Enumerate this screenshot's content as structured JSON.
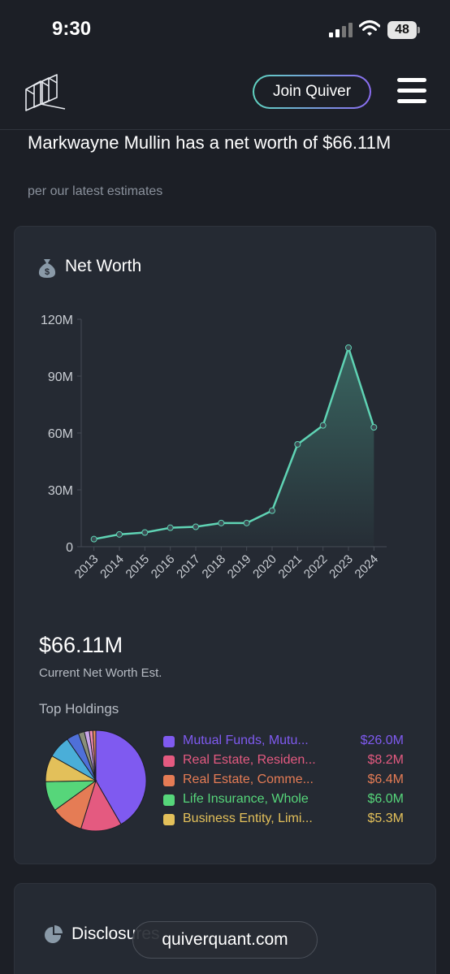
{
  "status_bar": {
    "time": "9:30",
    "battery": "48"
  },
  "header": {
    "join_label": "Join Quiver"
  },
  "headline": {
    "text": "Markwayne Mullin has a net worth of $66.11M",
    "subtext": "per our latest estimates"
  },
  "net_worth_card": {
    "title": "Net Worth",
    "current_value": "$66.11M",
    "current_label": "Current Net Worth Est.",
    "holdings_title": "Top Holdings"
  },
  "chart_data": [
    {
      "type": "area",
      "title": "Net Worth",
      "xlabel": "",
      "ylabel": "",
      "categories": [
        "2013",
        "2014",
        "2015",
        "2016",
        "2017",
        "2018",
        "2019",
        "2020",
        "2021",
        "2022",
        "2023",
        "2024"
      ],
      "values": [
        4,
        6.5,
        7.5,
        10,
        10.5,
        12.5,
        12.5,
        19,
        54,
        64,
        105,
        63
      ],
      "ylim": [
        0,
        120
      ],
      "yticks": [
        "0",
        "30M",
        "60M",
        "90M",
        "120M"
      ],
      "colors": {
        "line": "#5fd3b4",
        "marker": "#3d4a52"
      },
      "grid": false,
      "legend": "none"
    },
    {
      "type": "pie",
      "title": "Top Holdings",
      "series": [
        {
          "name": "Mutual Funds, Mutu...",
          "label": "$26.0M",
          "value": 26.0,
          "color": "#7f5af0"
        },
        {
          "name": "Real Estate, Residen...",
          "label": "$8.2M",
          "value": 8.2,
          "color": "#e45a80"
        },
        {
          "name": "Real Estate, Comme...",
          "label": "$6.4M",
          "value": 6.4,
          "color": "#e57c55"
        },
        {
          "name": "Life Insurance, Whole",
          "label": "$6.0M",
          "value": 6.0,
          "color": "#56d67a"
        },
        {
          "name": "Business Entity, Limi...",
          "label": "$5.3M",
          "value": 5.3,
          "color": "#e3c05a"
        },
        {
          "name": "",
          "value": 4.5,
          "color": "#4aaed8"
        },
        {
          "name": "",
          "value": 2.5,
          "color": "#4f70d8"
        },
        {
          "name": "",
          "value": 1.2,
          "color": "#8a8f7a"
        },
        {
          "name": "",
          "value": 1.0,
          "color": "#c9a5e8"
        },
        {
          "name": "",
          "value": 0.7,
          "color": "#f08ab0"
        },
        {
          "name": "",
          "value": 0.6,
          "color": "#e58c5a"
        }
      ],
      "legend": "right"
    }
  ],
  "disclosures_card": {
    "title": "Disclosures"
  },
  "browser": {
    "url": "quiverquant.com"
  }
}
